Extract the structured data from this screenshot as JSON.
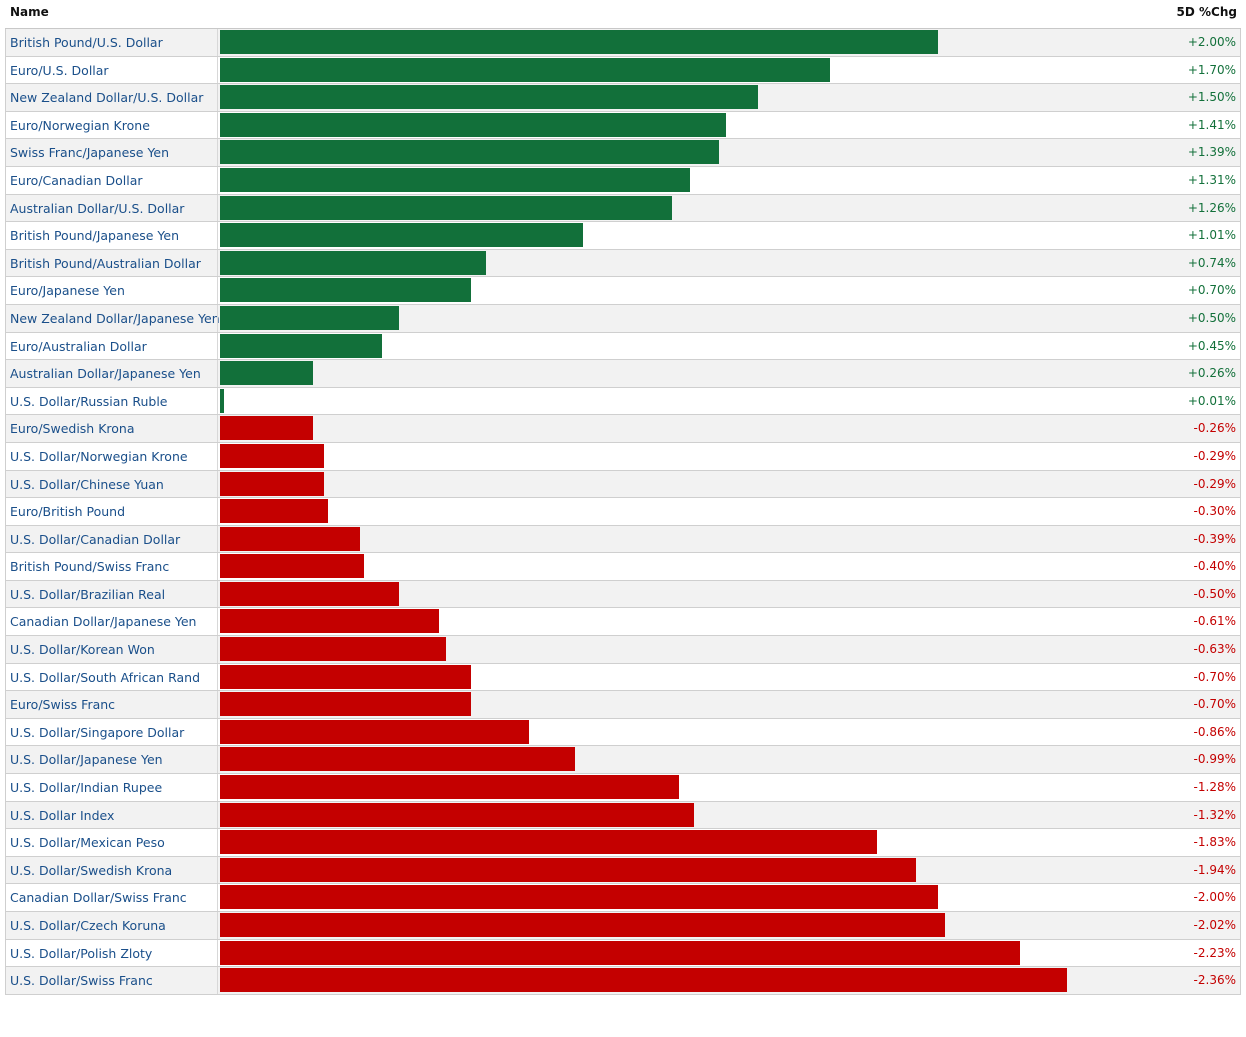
{
  "header": {
    "name_label": "Name",
    "change_label": "5D %Chg"
  },
  "colors": {
    "positive": "#12703a",
    "negative": "#c40000",
    "link": "#1a4f8a"
  },
  "chart_data": {
    "type": "bar",
    "orientation": "horizontal",
    "ylabel": "5D %Chg",
    "rows": [
      {
        "name": "British Pound/U.S. Dollar",
        "value": 2.0,
        "label": "+2.00%"
      },
      {
        "name": "Euro/U.S. Dollar",
        "value": 1.7,
        "label": "+1.70%"
      },
      {
        "name": "New Zealand Dollar/U.S. Dollar",
        "value": 1.5,
        "label": "+1.50%"
      },
      {
        "name": "Euro/Norwegian Krone",
        "value": 1.41,
        "label": "+1.41%"
      },
      {
        "name": "Swiss Franc/Japanese Yen",
        "value": 1.39,
        "label": "+1.39%"
      },
      {
        "name": "Euro/Canadian Dollar",
        "value": 1.31,
        "label": "+1.31%"
      },
      {
        "name": "Australian Dollar/U.S. Dollar",
        "value": 1.26,
        "label": "+1.26%"
      },
      {
        "name": "British Pound/Japanese Yen",
        "value": 1.01,
        "label": "+1.01%"
      },
      {
        "name": "British Pound/Australian Dollar",
        "value": 0.74,
        "label": "+0.74%"
      },
      {
        "name": "Euro/Japanese Yen",
        "value": 0.7,
        "label": "+0.70%"
      },
      {
        "name": "New Zealand Dollar/Japanese Yen",
        "value": 0.5,
        "label": "+0.50%"
      },
      {
        "name": "Euro/Australian Dollar",
        "value": 0.45,
        "label": "+0.45%"
      },
      {
        "name": "Australian Dollar/Japanese Yen",
        "value": 0.26,
        "label": "+0.26%"
      },
      {
        "name": "U.S. Dollar/Russian Ruble",
        "value": 0.01,
        "label": "+0.01%"
      },
      {
        "name": "Euro/Swedish Krona",
        "value": -0.26,
        "label": "-0.26%"
      },
      {
        "name": "U.S. Dollar/Norwegian Krone",
        "value": -0.29,
        "label": "-0.29%"
      },
      {
        "name": "U.S. Dollar/Chinese Yuan",
        "value": -0.29,
        "label": "-0.29%"
      },
      {
        "name": "Euro/British Pound",
        "value": -0.3,
        "label": "-0.30%"
      },
      {
        "name": "U.S. Dollar/Canadian Dollar",
        "value": -0.39,
        "label": "-0.39%"
      },
      {
        "name": "British Pound/Swiss Franc",
        "value": -0.4,
        "label": "-0.40%"
      },
      {
        "name": "U.S. Dollar/Brazilian Real",
        "value": -0.5,
        "label": "-0.50%"
      },
      {
        "name": "Canadian Dollar/Japanese Yen",
        "value": -0.61,
        "label": "-0.61%"
      },
      {
        "name": "U.S. Dollar/Korean Won",
        "value": -0.63,
        "label": "-0.63%"
      },
      {
        "name": "U.S. Dollar/South African Rand",
        "value": -0.7,
        "label": "-0.70%"
      },
      {
        "name": "Euro/Swiss Franc",
        "value": -0.7,
        "label": "-0.70%"
      },
      {
        "name": "U.S. Dollar/Singapore Dollar",
        "value": -0.86,
        "label": "-0.86%"
      },
      {
        "name": "U.S. Dollar/Japanese Yen",
        "value": -0.99,
        "label": "-0.99%"
      },
      {
        "name": "U.S. Dollar/Indian Rupee",
        "value": -1.28,
        "label": "-1.28%"
      },
      {
        "name": "U.S. Dollar Index",
        "value": -1.32,
        "label": "-1.32%"
      },
      {
        "name": "U.S. Dollar/Mexican Peso",
        "value": -1.83,
        "label": "-1.83%"
      },
      {
        "name": "U.S. Dollar/Swedish Krona",
        "value": -1.94,
        "label": "-1.94%"
      },
      {
        "name": "Canadian Dollar/Swiss Franc",
        "value": -2.0,
        "label": "-2.00%"
      },
      {
        "name": "U.S. Dollar/Czech Koruna",
        "value": -2.02,
        "label": "-2.02%"
      },
      {
        "name": "U.S. Dollar/Polish Zloty",
        "value": -2.23,
        "label": "-2.23%"
      },
      {
        "name": "U.S. Dollar/Swiss Franc",
        "value": -2.36,
        "label": "-2.36%"
      }
    ]
  }
}
